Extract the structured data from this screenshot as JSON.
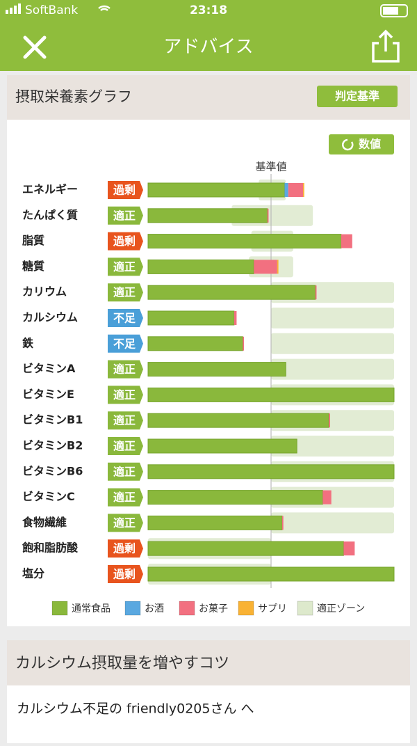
{
  "status_bar": {
    "carrier": "SoftBank",
    "time": "23:18"
  },
  "header": {
    "title": "アドバイス"
  },
  "section1": {
    "title": "摂取栄養素グラフ",
    "button": "判定基準"
  },
  "chart_data": {
    "type": "bar",
    "orientation": "horizontal",
    "stacked": true,
    "toggle_button": "数値",
    "reference_label": "基準値",
    "reference_value": 100,
    "xlim": [
      0,
      200
    ],
    "categories": [
      "エネルギー",
      "たんぱく質",
      "脂質",
      "糖質",
      "カリウム",
      "カルシウム",
      "鉄",
      "ビタミンA",
      "ビタミンE",
      "ビタミンB1",
      "ビタミンB2",
      "ビタミンB6",
      "ビタミンC",
      "食物繊維",
      "飽和脂肪酸",
      "塩分"
    ],
    "status": [
      "過剰",
      "適正",
      "過剰",
      "適正",
      "適正",
      "不足",
      "不足",
      "適正",
      "適正",
      "適正",
      "適正",
      "適正",
      "適正",
      "適正",
      "過剰",
      "過剰"
    ],
    "status_colors": [
      "#e8541e",
      "#8ab83c",
      "#e8541e",
      "#8ab83c",
      "#8ab83c",
      "#4a9fd8",
      "#4a9fd8",
      "#8ab83c",
      "#8ab83c",
      "#8ab83c",
      "#8ab83c",
      "#8ab83c",
      "#8ab83c",
      "#8ab83c",
      "#e8541e",
      "#e8541e"
    ],
    "series": [
      {
        "name": "通常食品",
        "color": "#8ab83c",
        "values": [
          111,
          97,
          157,
          86,
          136,
          70,
          77,
          112,
          200,
          147,
          121,
          200,
          142,
          109,
          159,
          200
        ]
      },
      {
        "name": "お酒",
        "color": "#5aa8e0",
        "values": [
          3,
          null,
          null,
          null,
          null,
          null,
          null,
          null,
          null,
          null,
          null,
          null,
          null,
          null,
          null,
          null
        ]
      },
      {
        "name": "お菓子",
        "color": "#f27080",
        "values": [
          12,
          1,
          9,
          19,
          1,
          2,
          1,
          null,
          null,
          1,
          null,
          null,
          7,
          1,
          9,
          null
        ]
      },
      {
        "name": "サプリ",
        "color": "#f9b234",
        "values": [
          1,
          null,
          null,
          1,
          null,
          null,
          null,
          null,
          null,
          null,
          null,
          null,
          null,
          null,
          null,
          null
        ]
      }
    ],
    "zone": {
      "name": "適正ゾーン",
      "color": "#dde9cc",
      "ranges": [
        [
          90,
          112
        ],
        [
          68,
          134
        ],
        [
          84,
          118
        ],
        [
          82,
          118
        ],
        [
          100,
          200
        ],
        [
          100,
          200
        ],
        [
          100,
          200
        ],
        [
          100,
          200
        ],
        [
          100,
          200
        ],
        [
          100,
          200
        ],
        [
          100,
          200
        ],
        [
          100,
          200
        ],
        [
          100,
          200
        ],
        [
          100,
          200
        ],
        [
          0,
          100
        ],
        [
          0,
          100
        ]
      ]
    }
  },
  "section2": {
    "title": "カルシウム摂取量を増やすコツ",
    "text": "カルシウム不足の friendly0205さん へ"
  }
}
